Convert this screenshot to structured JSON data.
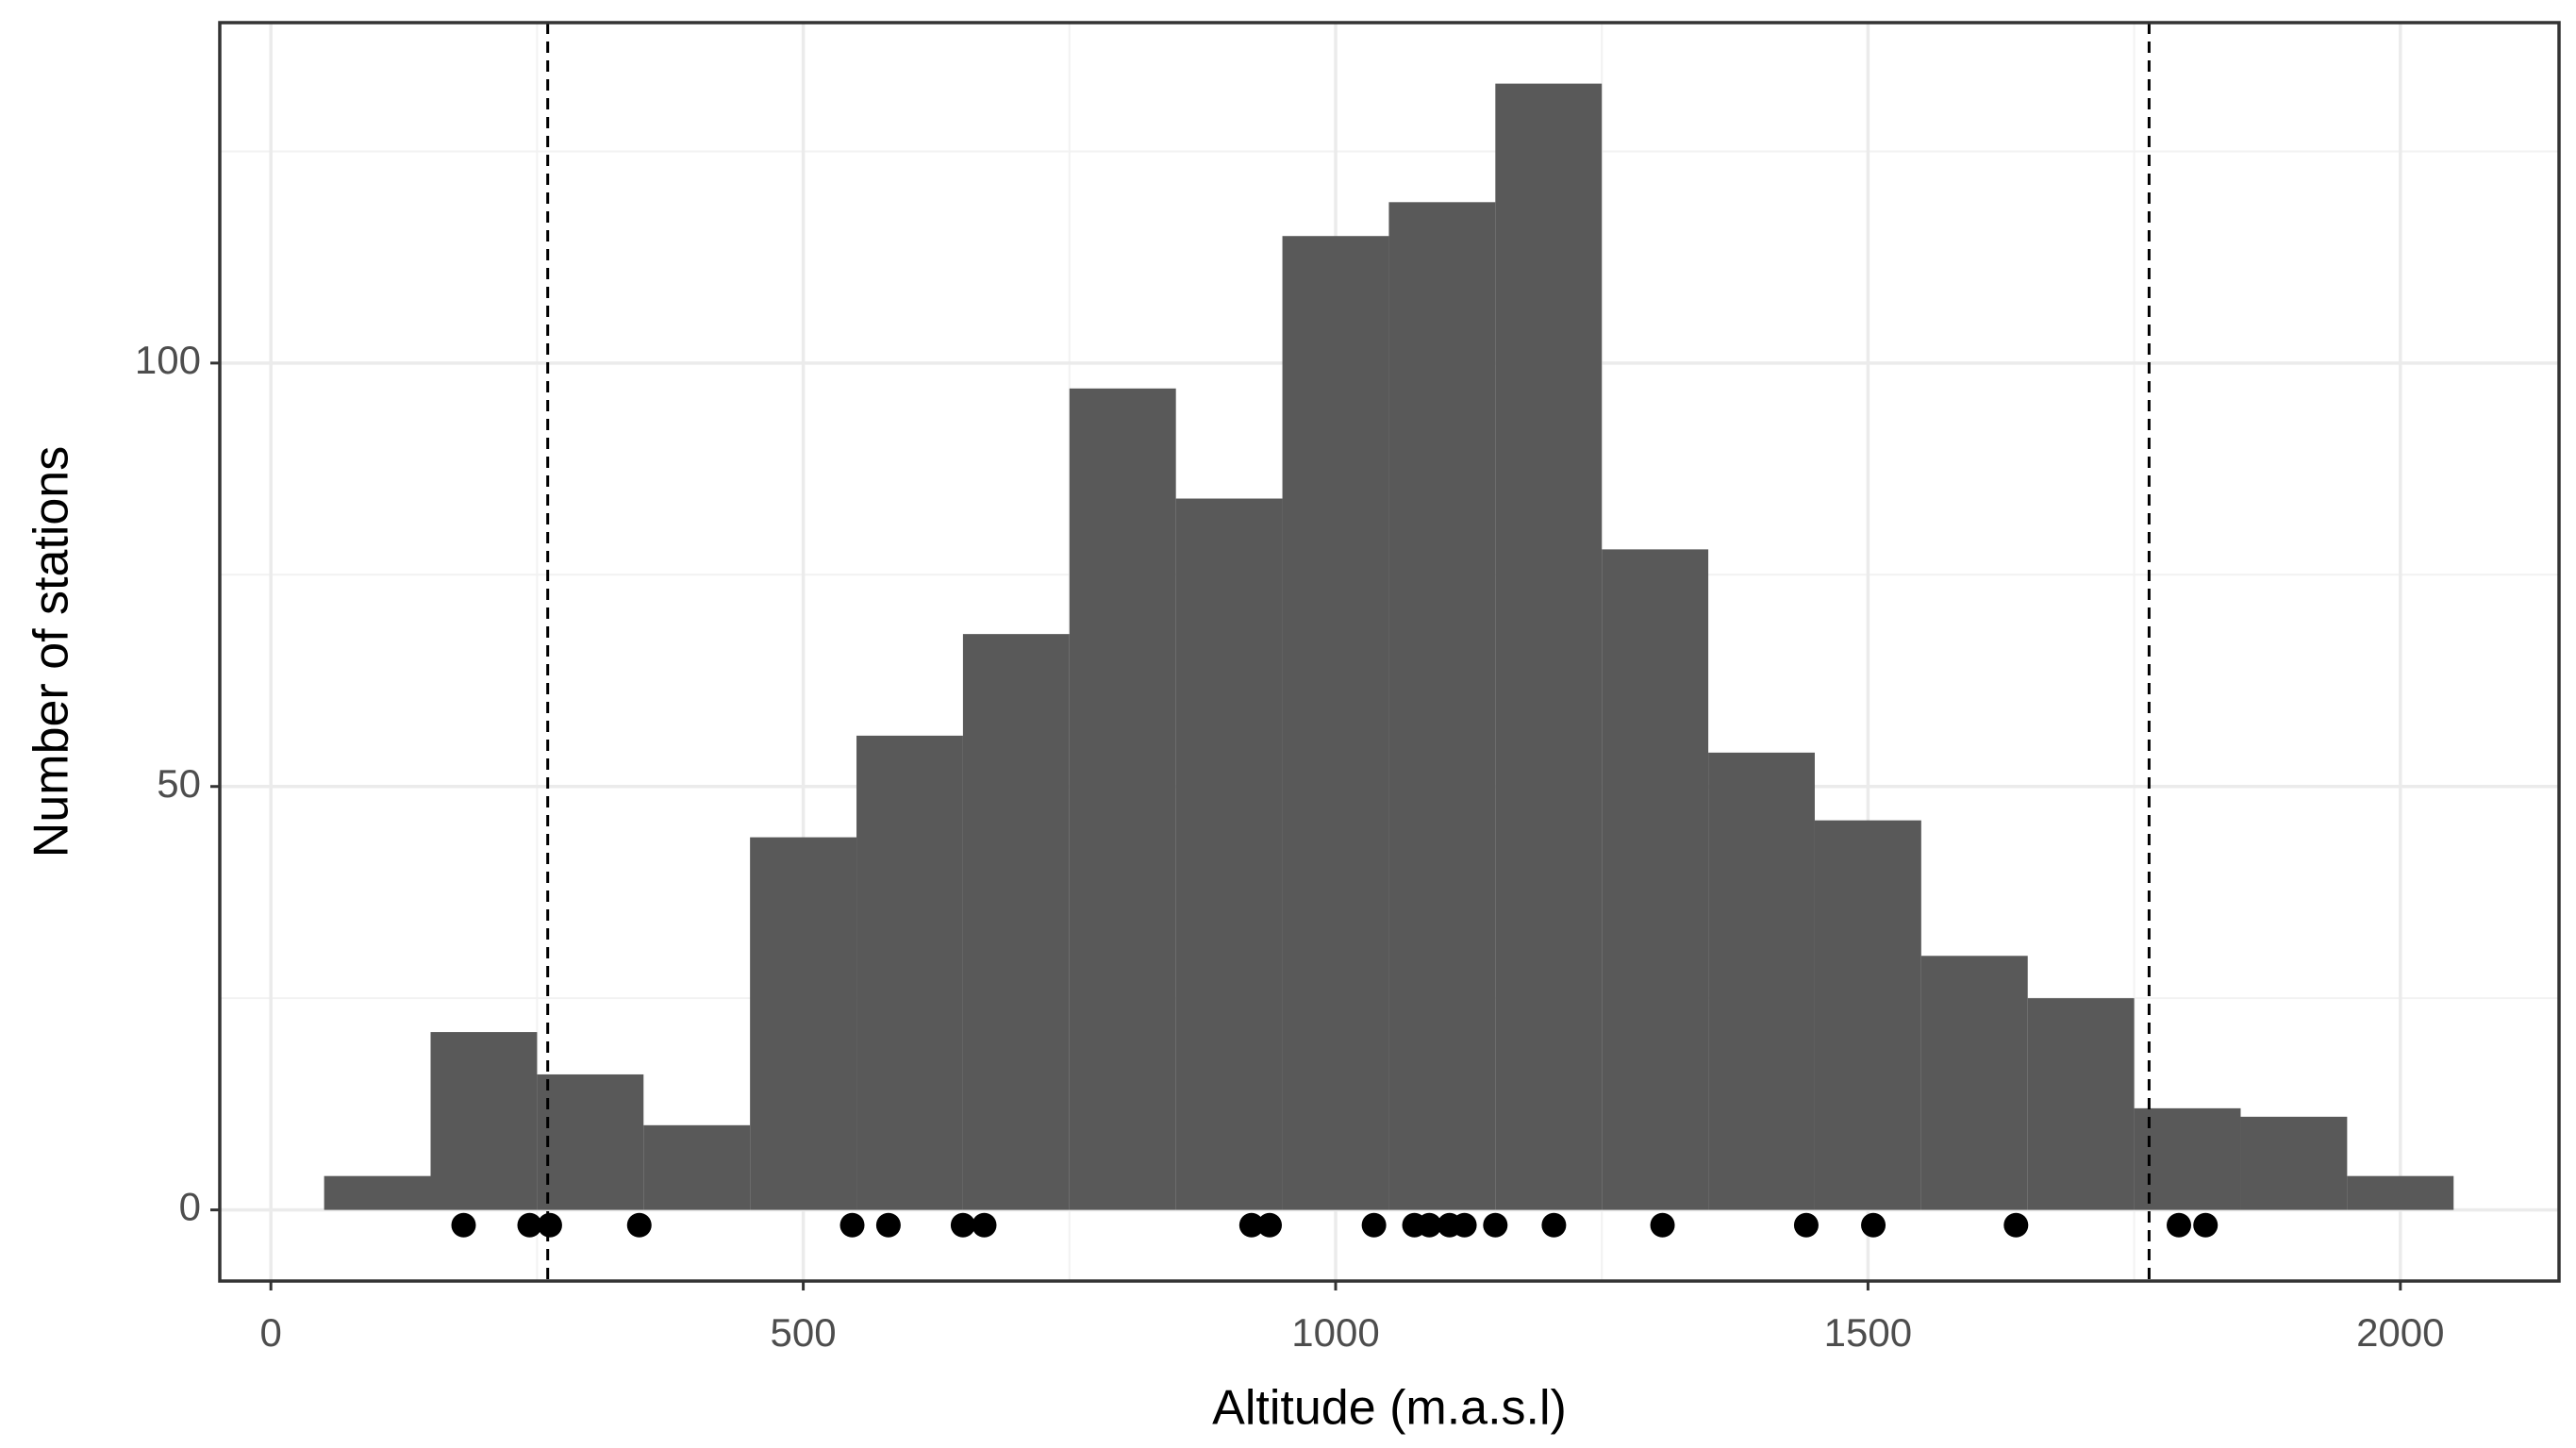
{
  "chart_data": {
    "type": "histogram",
    "x_label": "Altitude (m.a.s.l)",
    "y_label": "Number of stations",
    "bins": [
      50,
      150,
      250,
      350,
      450,
      550,
      650,
      750,
      850,
      950,
      1050,
      1150,
      1250,
      1350,
      1450,
      1550,
      1650,
      1750,
      1850,
      1950,
      2050
    ],
    "values": [
      4,
      21,
      16,
      10,
      44,
      56,
      68,
      97,
      84,
      115,
      119,
      133,
      78,
      54,
      46,
      30,
      25,
      12,
      11,
      4
    ],
    "color": "#595959",
    "points": {
      "color": "#000000",
      "x": [
        181,
        243,
        262,
        346,
        546,
        580,
        650,
        670,
        921,
        938,
        1036,
        1074,
        1088,
        1107,
        1121,
        1150,
        1205,
        1307,
        1442,
        1505,
        1639,
        1792,
        1817
      ],
      "y": [
        -1.8,
        -1.8,
        -1.8,
        -1.8,
        -1.8,
        -1.8,
        -1.8,
        -1.8,
        -1.8,
        -1.8,
        -1.8,
        -1.8,
        -1.8,
        -1.8,
        -1.8,
        -1.8,
        -1.8,
        -1.8,
        -1.8,
        -1.8,
        -1.8,
        -1.8,
        -1.8
      ]
    },
    "vlines": [
      260,
      1764
    ],
    "xlim": [
      -48,
      2149
    ],
    "ylim": [
      -8.4,
      140.2
    ],
    "xticks": [
      0,
      500,
      1000,
      1500,
      2000
    ],
    "yticks": [
      0,
      50,
      100
    ],
    "minor_xticks": [
      250,
      750,
      1250,
      1750
    ],
    "minor_yticks": [
      25,
      75,
      125
    ],
    "grid": true
  }
}
